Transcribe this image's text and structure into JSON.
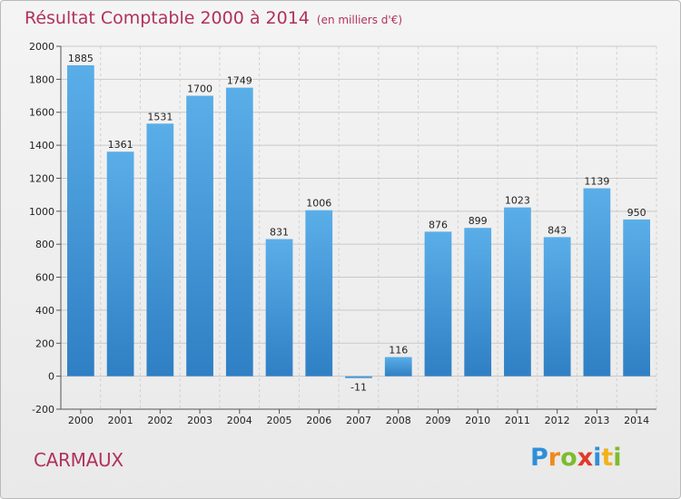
{
  "header": {
    "title": "Résultat Comptable 2000 à 2014",
    "subtitle": "(en milliers d'€)"
  },
  "footer": {
    "city": "CARMAUX",
    "logo_letters": [
      "P",
      "r",
      "o",
      "x",
      "i",
      "t",
      "i"
    ],
    "logo_colors": [
      "#2f8fd8",
      "#f08a1c",
      "#7dbb2e",
      "#e03a2b",
      "#2f8fd8",
      "#f0b21c",
      "#7dbb2e"
    ]
  },
  "chart_data": {
    "type": "bar",
    "title": "Résultat Comptable 2000 à 2014",
    "subtitle": "(en milliers d'€)",
    "categories": [
      "2000",
      "2001",
      "2002",
      "2003",
      "2004",
      "2005",
      "2006",
      "2007",
      "2008",
      "2009",
      "2010",
      "2011",
      "2012",
      "2013",
      "2014"
    ],
    "values": [
      1885,
      1361,
      1531,
      1700,
      1749,
      831,
      1006,
      -11,
      116,
      876,
      899,
      1023,
      843,
      1139,
      950
    ],
    "data_labels": [
      "1885",
      "1361",
      "1531",
      "1700",
      "1749",
      "831",
      "1006",
      "-11",
      "116",
      "876",
      "899",
      "1023",
      "843",
      "1139",
      "950"
    ],
    "ylim": [
      -200,
      2000
    ],
    "yticks": [
      -200,
      0,
      200,
      400,
      600,
      800,
      1000,
      1200,
      1400,
      1600,
      1800,
      2000
    ],
    "grid": true,
    "bar_color_top": "#5aaee8",
    "bar_color_bottom": "#2f7fc4"
  }
}
